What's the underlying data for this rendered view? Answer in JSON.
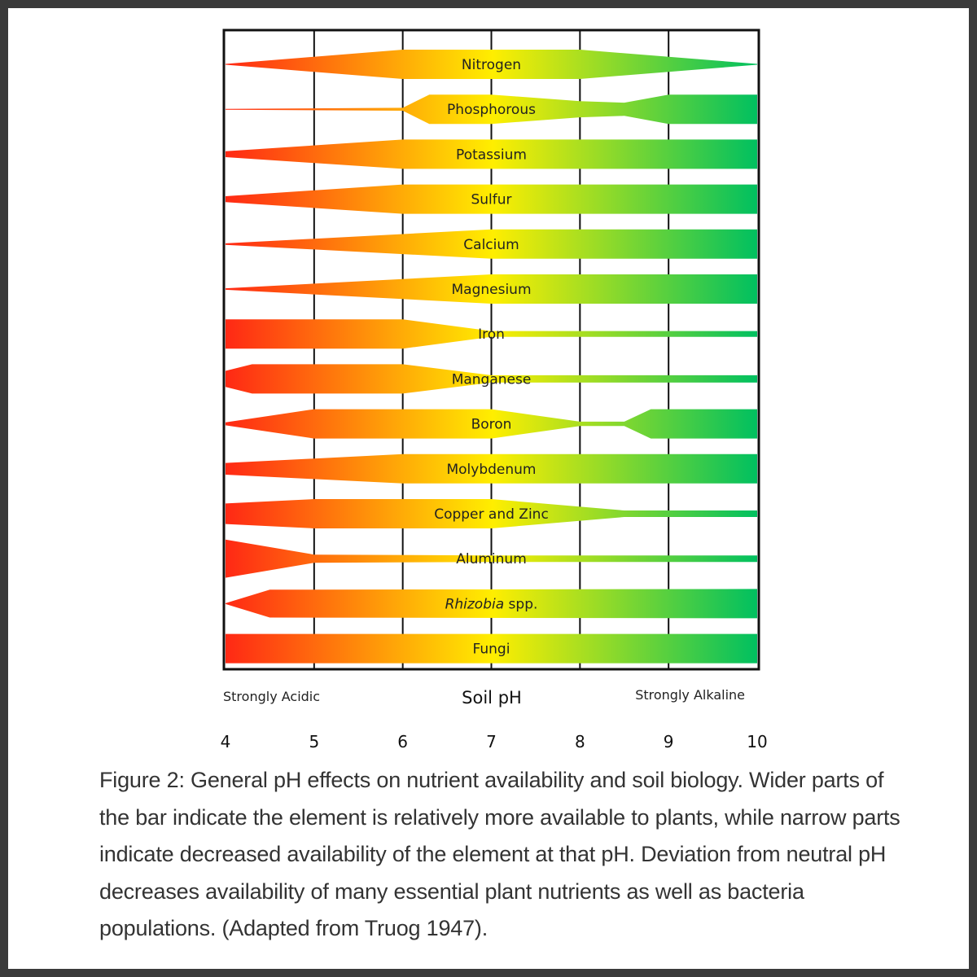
{
  "chart_data": {
    "type": "bar",
    "title": "",
    "xlabel": "Soil pH",
    "left_label": "Strongly Acidic",
    "right_label": "Strongly Alkaline",
    "x_ticks": [
      "4",
      "5",
      "6",
      "7",
      "8",
      "9",
      "10"
    ],
    "xlim": [
      4,
      10
    ],
    "value_meaning": "relative availability (bar width), 0 = none, 1 = full",
    "series": [
      {
        "label": "Nitrogen",
        "x": [
          4,
          6,
          8,
          10
        ],
        "w": [
          0.03,
          1,
          1,
          0.03
        ]
      },
      {
        "label": "Phosphorous",
        "x": [
          4,
          6,
          6.3,
          7,
          8,
          8.5,
          9,
          10
        ],
        "w": [
          0.03,
          0.1,
          1,
          1,
          0.55,
          0.45,
          1,
          1
        ]
      },
      {
        "label": "Potassium",
        "x": [
          4,
          6,
          10
        ],
        "w": [
          0.2,
          1,
          1
        ]
      },
      {
        "label": "Sulfur",
        "x": [
          4,
          6,
          10
        ],
        "w": [
          0.2,
          1,
          1
        ]
      },
      {
        "label": "Calcium",
        "x": [
          4,
          7,
          10
        ],
        "w": [
          0.05,
          1,
          1
        ]
      },
      {
        "label": "Magnesium",
        "x": [
          4,
          7,
          10
        ],
        "w": [
          0.05,
          1,
          1
        ]
      },
      {
        "label": "Iron",
        "x": [
          4,
          6,
          7,
          10
        ],
        "w": [
          1,
          1,
          0.2,
          0.2
        ]
      },
      {
        "label": "Manganese",
        "x": [
          4,
          4.3,
          6,
          7,
          10
        ],
        "w": [
          0.55,
          1,
          1,
          0.25,
          0.25
        ]
      },
      {
        "label": "Boron",
        "x": [
          4,
          5,
          7,
          8,
          8.5,
          8.8,
          10
        ],
        "w": [
          0.1,
          1,
          1,
          0.15,
          0.15,
          1,
          1
        ]
      },
      {
        "label": "Molybdenum",
        "x": [
          4,
          6,
          10
        ],
        "w": [
          0.4,
          1,
          1
        ]
      },
      {
        "label": "Copper and Zinc",
        "x": [
          4,
          5,
          7,
          8.5,
          10
        ],
        "w": [
          0.7,
          1,
          1,
          0.22,
          0.22
        ]
      },
      {
        "label": "Aluminum",
        "x": [
          4,
          5,
          7,
          10
        ],
        "w": [
          1.3,
          0.28,
          0.22,
          0.22
        ]
      },
      {
        "label": "Rhizobia spp.",
        "x": [
          4,
          4.5,
          10
        ],
        "w": [
          0.03,
          0.95,
          1
        ],
        "italic_part": "Rhizobia",
        "rest": " spp."
      },
      {
        "label": "Fungi",
        "x": [
          4,
          10
        ],
        "w": [
          1,
          1
        ]
      }
    ],
    "colors": {
      "acidic": "#ff2a14",
      "neutral": "#ffee00",
      "alkaline": "#00c060"
    }
  },
  "caption": "Figure 2: General pH effects on nutrient availability and soil biology. Wider parts of the bar indicate the element is relatively more available to plants, while narrow parts indicate decreased availability of the element at that pH. Deviation from neutral pH decreases availability of many essential plant nutrients as well as bacteria populations. (Adapted from Truog 1947)."
}
